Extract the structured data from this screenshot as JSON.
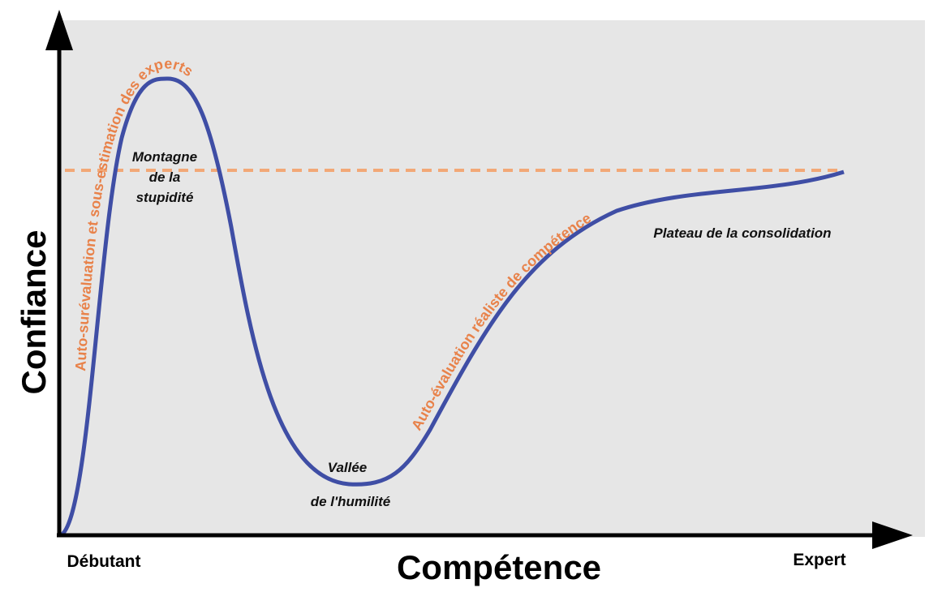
{
  "axes": {
    "y_label": "Confiance",
    "x_label": "Compétence",
    "x_start": "Débutant",
    "x_end": "Expert"
  },
  "annotations": {
    "overestimation": "Auto-surévaluation et sous-estimation des experts",
    "realistic": "Auto-évaluation réaliste de compétence"
  },
  "stages": {
    "mountain": [
      "Montagne",
      "de la",
      "stupidité"
    ],
    "valley": [
      "Vallée",
      "de l'humilité"
    ],
    "plateau": "Plateau de la consolidation"
  }
}
